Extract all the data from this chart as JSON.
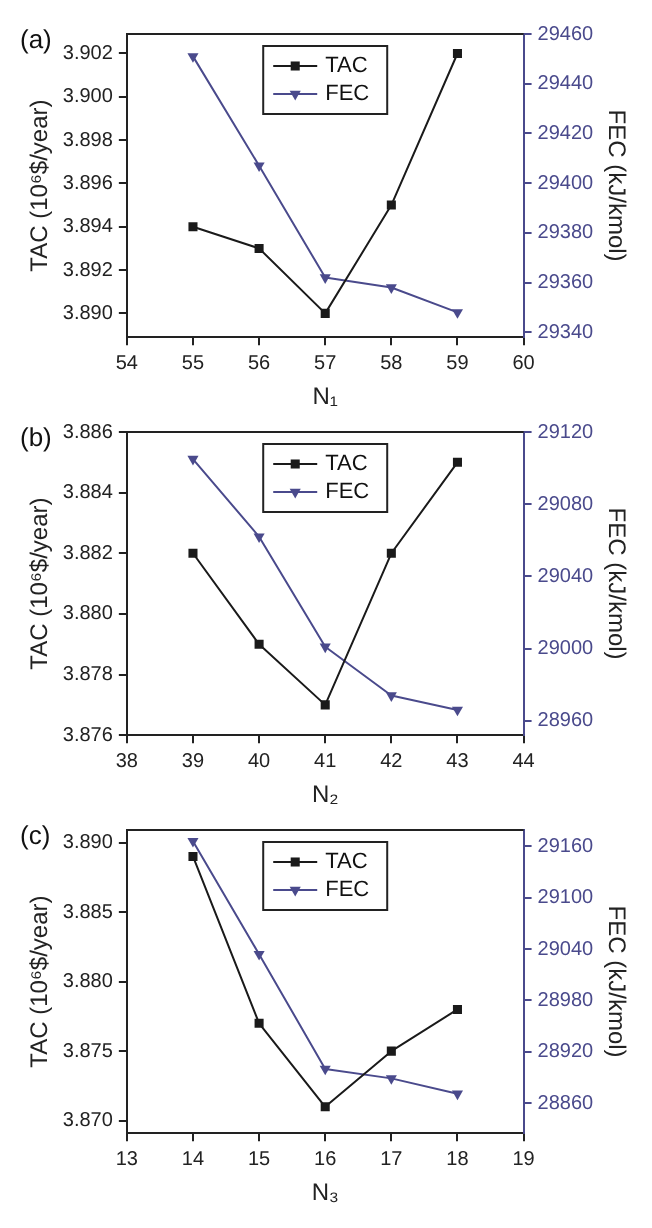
{
  "chart_data": [
    {
      "type": "line",
      "annotations": [
        "(a)"
      ],
      "xlabel": "N₁",
      "ylabel": "TAC (10⁶$/year)",
      "y2label": "FEC (kJ/kmol)",
      "x": [
        55,
        56,
        57,
        58,
        59
      ],
      "xlim": [
        54,
        60
      ],
      "xticks": [
        54,
        55,
        56,
        57,
        58,
        59,
        60
      ],
      "ylim": [
        3.8889,
        3.9029
      ],
      "yticks": [
        {
          "value": 3.89,
          "label": "3.890"
        },
        3.892,
        3.894,
        3.896,
        3.898,
        {
          "value": 3.9,
          "label": "3.900"
        },
        3.902
      ],
      "y2lim": [
        29338,
        29460
      ],
      "y2ticks": [
        29340,
        29360,
        29380,
        29400,
        29420,
        29440,
        29460
      ],
      "grid": false,
      "legend": "top",
      "line_style": "solid",
      "series": [
        {
          "name": "TAC",
          "color": "#1a1a1a",
          "marker": "square",
          "values": [
            3.894,
            3.893,
            3.89,
            3.895,
            3.902
          ]
        },
        {
          "name": "FEC",
          "color": "#4a4a8c",
          "marker": "triangle",
          "axis": "y2",
          "values": [
            29451,
            29407,
            29362,
            29358,
            29348
          ]
        }
      ]
    },
    {
      "type": "line",
      "annotations": [
        "(b)"
      ],
      "xlabel": "N₂",
      "ylabel": "TAC (10⁶$/year)",
      "y2label": "FEC (kJ/kmol)",
      "x": [
        39,
        40,
        41,
        42,
        43
      ],
      "xlim": [
        38,
        44
      ],
      "xticks": [
        38,
        39,
        40,
        41,
        42,
        43,
        44
      ],
      "ylim": [
        3.876,
        3.886
      ],
      "yticks": [
        3.876,
        3.878,
        {
          "value": 3.88,
          "label": "3.880"
        },
        3.882,
        3.884,
        3.886
      ],
      "y2lim": [
        28952,
        29120
      ],
      "y2ticks": [
        28960,
        29000,
        29040,
        29080,
        29120
      ],
      "grid": false,
      "legend": "top",
      "line_style": "solid",
      "series": [
        {
          "name": "TAC",
          "color": "#1a1a1a",
          "marker": "square",
          "values": [
            3.882,
            3.879,
            3.877,
            3.882,
            3.885
          ]
        },
        {
          "name": "FEC",
          "color": "#4a4a8c",
          "marker": "triangle",
          "axis": "y2",
          "values": [
            29105,
            29062,
            29001,
            28974,
            28966
          ]
        }
      ]
    },
    {
      "type": "line",
      "annotations": [
        "(c)"
      ],
      "xlabel": "N₃",
      "ylabel": "TAC (10⁶$/year)",
      "y2label": "FEC (kJ/kmol)",
      "x": [
        14,
        15,
        16,
        17,
        18
      ],
      "xlim": [
        13,
        19
      ],
      "xticks": [
        13,
        14,
        15,
        16,
        17,
        18,
        19
      ],
      "ylim": [
        3.8691,
        3.8909
      ],
      "yticks": [
        {
          "value": 3.87,
          "label": "3.870"
        },
        3.875,
        {
          "value": 3.88,
          "label": "3.880"
        },
        3.885,
        {
          "value": 3.89,
          "label": "3.890"
        }
      ],
      "y2lim": [
        28825,
        29179
      ],
      "y2ticks": [
        28860,
        28920,
        28980,
        29040,
        29100,
        29160
      ],
      "grid": false,
      "legend": "top",
      "line_style": "solid",
      "series": [
        {
          "name": "TAC",
          "color": "#1a1a1a",
          "marker": "square",
          "values": [
            3.889,
            3.877,
            3.871,
            3.875,
            3.878
          ]
        },
        {
          "name": "FEC",
          "color": "#4a4a8c",
          "marker": "triangle",
          "axis": "y2",
          "values": [
            29166,
            29034,
            28900,
            28889,
            28871
          ]
        }
      ]
    }
  ]
}
